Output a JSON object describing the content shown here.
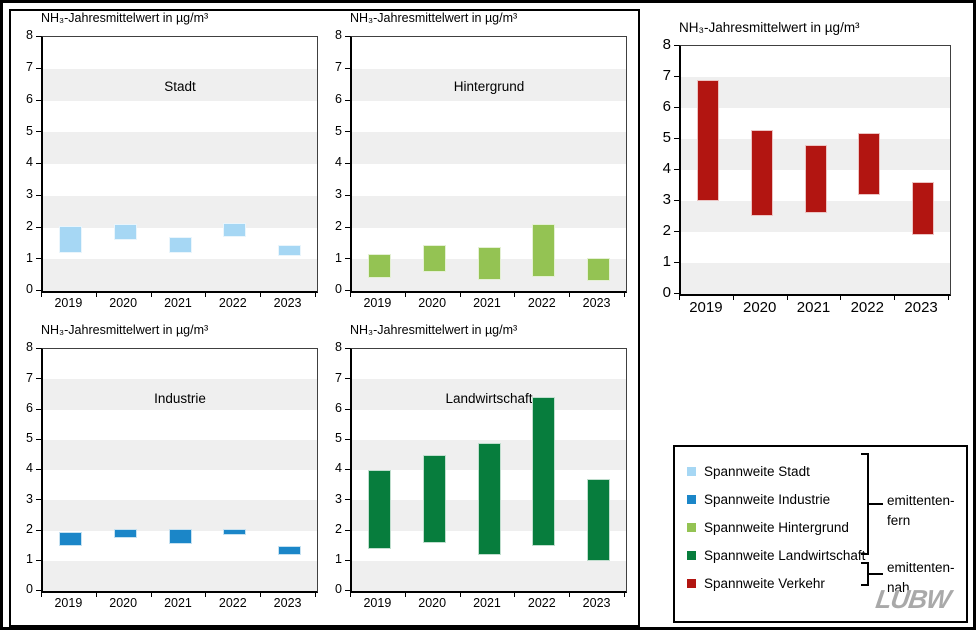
{
  "page": {
    "background": "#ffffff",
    "border_color": "#000000",
    "band_color": "#efefef"
  },
  "axis": {
    "ymin": 0,
    "ymax": 8,
    "ticks": [
      0,
      1,
      2,
      3,
      4,
      5,
      6,
      7,
      8
    ],
    "unit": "µg/m³"
  },
  "chart_data": [
    {
      "type": "bar",
      "subtype": "floating-range",
      "key": "stadt",
      "title": "NH₃-Jahresmittelwert in µg/m³",
      "inner_label": "Stadt",
      "series_name": "Spannweite Stadt",
      "color": "#a6d7f4",
      "categories": [
        "2019",
        "2020",
        "2021",
        "2022",
        "2023"
      ],
      "ranges": [
        [
          1.2,
          2.05
        ],
        [
          1.6,
          2.1
        ],
        [
          1.2,
          1.7
        ],
        [
          1.7,
          2.15
        ],
        [
          1.1,
          1.45
        ]
      ],
      "ylim": [
        0,
        8
      ],
      "grid": "banded",
      "legend_position": "none"
    },
    {
      "type": "bar",
      "subtype": "floating-range",
      "key": "hintergrund",
      "title": "NH₃-Jahresmittelwert in µg/m³",
      "inner_label": "Hintergrund",
      "series_name": "Spannweite Hintergrund",
      "color": "#94c353",
      "categories": [
        "2019",
        "2020",
        "2021",
        "2022",
        "2023"
      ],
      "ranges": [
        [
          0.4,
          1.15
        ],
        [
          0.6,
          1.45
        ],
        [
          0.35,
          1.4
        ],
        [
          0.45,
          2.1
        ],
        [
          0.3,
          1.05
        ]
      ],
      "ylim": [
        0,
        8
      ],
      "grid": "banded",
      "legend_position": "none"
    },
    {
      "type": "bar",
      "subtype": "floating-range",
      "key": "industrie",
      "title": "NH₃-Jahresmittelwert in µg/m³",
      "inner_label": "Industrie",
      "series_name": "Spannweite Industrie",
      "color": "#1b86c8",
      "categories": [
        "2019",
        "2020",
        "2021",
        "2022",
        "2023"
      ],
      "ranges": [
        [
          1.5,
          1.95
        ],
        [
          1.75,
          2.05
        ],
        [
          1.55,
          2.05
        ],
        [
          1.85,
          2.05
        ],
        [
          1.2,
          1.5
        ]
      ],
      "ylim": [
        0,
        8
      ],
      "grid": "banded",
      "legend_position": "none"
    },
    {
      "type": "bar",
      "subtype": "floating-range",
      "key": "landwirtschaft",
      "title": "NH₃-Jahresmittelwert in µg/m³",
      "inner_label": "Landwirtschaft",
      "series_name": "Spannweite Landwirtschaft",
      "color": "#077d3d",
      "categories": [
        "2019",
        "2020",
        "2021",
        "2022",
        "2023"
      ],
      "ranges": [
        [
          1.4,
          4.0
        ],
        [
          1.6,
          4.5
        ],
        [
          1.2,
          4.9
        ],
        [
          1.5,
          6.4
        ],
        [
          1.0,
          3.7
        ]
      ],
      "ylim": [
        0,
        8
      ],
      "grid": "banded",
      "legend_position": "none"
    },
    {
      "type": "bar",
      "subtype": "floating-range",
      "key": "verkehr",
      "title": "NH₃-Jahresmittelwert in µg/m³",
      "inner_label": "",
      "series_name": "Spannweite Verkehr",
      "color": "#b21511",
      "categories": [
        "2019",
        "2020",
        "2021",
        "2022",
        "2023"
      ],
      "ranges": [
        [
          3.0,
          6.9
        ],
        [
          2.5,
          5.3
        ],
        [
          2.6,
          4.8
        ],
        [
          3.2,
          5.2
        ],
        [
          1.9,
          3.6
        ]
      ],
      "ylim": [
        0,
        8
      ],
      "grid": "banded",
      "legend_position": "none"
    }
  ],
  "legend": {
    "items": [
      {
        "label": "Spannweite Stadt",
        "color": "#a6d7f4"
      },
      {
        "label": "Spannweite Industrie",
        "color": "#1b86c8"
      },
      {
        "label": "Spannweite Hintergrund",
        "color": "#94c353"
      },
      {
        "label": "Spannweite Landwirtschaft",
        "color": "#077d3d"
      },
      {
        "label": "Spannweite Verkehr",
        "color": "#b21511"
      }
    ],
    "group_far": {
      "line1": "emittenten-",
      "line2": "fern"
    },
    "group_near": {
      "line1": "emittenten-",
      "line2": "nah"
    },
    "logo": "LUBW"
  }
}
